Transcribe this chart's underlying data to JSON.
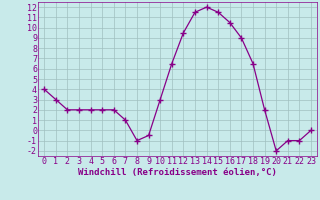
{
  "x": [
    0,
    1,
    2,
    3,
    4,
    5,
    6,
    7,
    8,
    9,
    10,
    11,
    12,
    13,
    14,
    15,
    16,
    17,
    18,
    19,
    20,
    21,
    22,
    23
  ],
  "y": [
    4,
    3,
    2,
    2,
    2,
    2,
    2,
    1,
    -1,
    -0.5,
    3,
    6.5,
    9.5,
    11.5,
    12,
    11.5,
    10.5,
    9,
    6.5,
    2,
    -2,
    -1,
    -1,
    0
  ],
  "line_color": "#880088",
  "marker_color": "#880088",
  "bg_color": "#c8eaea",
  "grid_color": "#a0c0c0",
  "xlabel": "Windchill (Refroidissement éolien,°C)",
  "xlim": [
    -0.5,
    23.5
  ],
  "ylim": [
    -2.5,
    12.5
  ],
  "yticks": [
    -2,
    -1,
    0,
    1,
    2,
    3,
    4,
    5,
    6,
    7,
    8,
    9,
    10,
    11,
    12
  ],
  "xticks": [
    0,
    1,
    2,
    3,
    4,
    5,
    6,
    7,
    8,
    9,
    10,
    11,
    12,
    13,
    14,
    15,
    16,
    17,
    18,
    19,
    20,
    21,
    22,
    23
  ],
  "font_color": "#880088",
  "tick_font_size": 6,
  "label_font_size": 6.5,
  "marker_size": 2.5,
  "line_width": 0.9
}
